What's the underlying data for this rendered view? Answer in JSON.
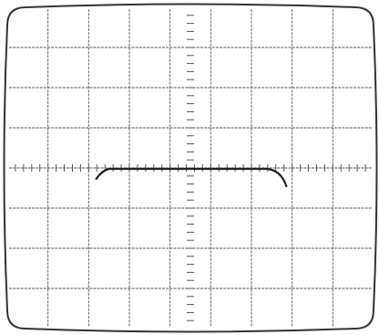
{
  "screen": {
    "grid_divisions_x": 9,
    "grid_divisions_y": 8,
    "subdivisions_per_division": 5,
    "line_color": "#555555",
    "trace_color": "#222222",
    "background_color": "#ffffff"
  },
  "trace": {
    "description_level_division": 0,
    "flat_from_division": -2.0,
    "flat_to_division": 2.0
  }
}
